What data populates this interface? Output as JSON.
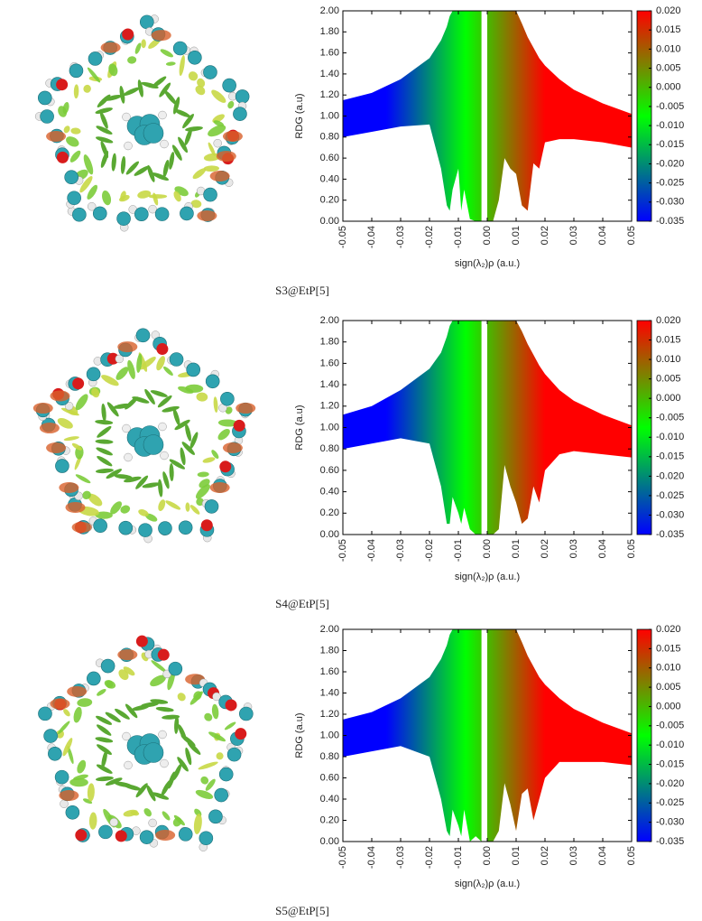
{
  "chart_data": [
    {
      "type": "band",
      "caption": "S3@EtP[5]",
      "xlabel": "sign(λ₂)ρ (a.u.)",
      "ylabel": "RDG (a.u)",
      "x": [
        -0.05,
        -0.04,
        -0.03,
        -0.02,
        -0.016,
        -0.014,
        -0.013,
        -0.012,
        -0.01,
        -0.009,
        -0.008,
        -0.006,
        -0.004,
        -0.002,
        -0.001,
        0.0,
        0.002,
        0.004,
        0.006,
        0.008,
        0.01,
        0.012,
        0.014,
        0.016,
        0.018,
        0.02,
        0.025,
        0.03,
        0.04,
        0.05
      ],
      "series": [
        {
          "values": [
            1.15,
            1.22,
            1.35,
            1.55,
            1.72,
            1.85,
            1.95,
            2.0,
            2.0,
            2.0,
            2.0,
            2.0,
            2.0,
            2.0,
            null,
            2.0,
            2.0,
            2.0,
            2.0,
            2.0,
            2.0,
            1.88,
            1.75,
            1.65,
            1.55,
            1.48,
            1.35,
            1.25,
            1.12,
            1.02
          ]
        },
        {
          "values": [
            0.8,
            0.85,
            0.9,
            0.92,
            0.5,
            0.15,
            0.1,
            0.3,
            0.5,
            0.1,
            0.3,
            0.02,
            0.0,
            0.0,
            null,
            0.0,
            0.0,
            0.2,
            0.6,
            0.5,
            0.45,
            0.15,
            0.1,
            0.55,
            0.5,
            0.75,
            0.78,
            0.78,
            0.75,
            0.7
          ]
        }
      ],
      "xlim": [
        -0.05,
        0.05
      ],
      "xticks": [
        {
          "value": -0.05,
          "label": "-0.05"
        },
        {
          "value": -0.04,
          "label": "-0.04"
        },
        {
          "value": -0.03,
          "label": "-0.03"
        },
        {
          "value": -0.02,
          "label": "-0.02"
        },
        {
          "value": -0.01,
          "label": "-0.01"
        },
        {
          "value": 0,
          "label": "0.00"
        },
        {
          "value": 0.01,
          "label": "0.01"
        },
        {
          "value": 0.02,
          "label": "0.02"
        },
        {
          "value": 0.03,
          "label": "0.03"
        },
        {
          "value": 0.04,
          "label": "0.04"
        },
        {
          "value": 0.05,
          "label": "0.05"
        }
      ],
      "ylim": [
        0,
        2
      ],
      "yticks": [
        {
          "value": 0,
          "label": "0.00"
        },
        {
          "value": 0.2,
          "label": "0.20"
        },
        {
          "value": 0.4,
          "label": "0.40"
        },
        {
          "value": 0.6,
          "label": "0.60"
        },
        {
          "value": 0.8,
          "label": "0.80"
        },
        {
          "value": 1,
          "label": "1.00"
        },
        {
          "value": 1.2,
          "label": "1.20"
        },
        {
          "value": 1.4,
          "label": "1.40"
        },
        {
          "value": 1.6,
          "label": "1.60"
        },
        {
          "value": 1.8,
          "label": "1.80"
        },
        {
          "value": 2,
          "label": "2.00"
        }
      ],
      "clim": [
        -0.035,
        0.02
      ],
      "colors": [
        "#0000ff",
        "#00ff00",
        "#ff0000"
      ],
      "cticks": [
        {
          "value": 0.02,
          "label": "0.020"
        },
        {
          "value": 0.015,
          "label": "0.015"
        },
        {
          "value": 0.01,
          "label": "0.010"
        },
        {
          "value": 0.005,
          "label": "0.005"
        },
        {
          "value": 0,
          "label": "0.000"
        },
        {
          "value": -0.005,
          "label": "-0.005"
        },
        {
          "value": -0.01,
          "label": "-0.010"
        },
        {
          "value": -0.015,
          "label": "-0.015"
        },
        {
          "value": -0.02,
          "label": "-0.020"
        },
        {
          "value": -0.025,
          "label": "-0.025"
        },
        {
          "value": -0.03,
          "label": "-0.030"
        },
        {
          "value": -0.035,
          "label": "-0.035"
        }
      ]
    },
    {
      "type": "band",
      "caption": "S4@EtP[5]",
      "xlabel": "sign(λ₂)ρ (a.u.)",
      "ylabel": "RDG (a.u)",
      "x": [
        -0.05,
        -0.04,
        -0.03,
        -0.02,
        -0.016,
        -0.014,
        -0.013,
        -0.012,
        -0.01,
        -0.009,
        -0.008,
        -0.006,
        -0.004,
        -0.002,
        -0.001,
        0.0,
        0.002,
        0.004,
        0.006,
        0.008,
        0.01,
        0.012,
        0.014,
        0.016,
        0.018,
        0.02,
        0.025,
        0.03,
        0.04,
        0.05
      ],
      "series": [
        {
          "values": [
            1.12,
            1.2,
            1.35,
            1.55,
            1.7,
            1.85,
            1.95,
            2.0,
            2.0,
            2.0,
            2.0,
            2.0,
            2.0,
            2.0,
            null,
            2.0,
            2.0,
            2.0,
            2.0,
            2.0,
            2.0,
            1.9,
            1.78,
            1.68,
            1.58,
            1.5,
            1.35,
            1.25,
            1.12,
            1.02
          ]
        },
        {
          "values": [
            0.8,
            0.85,
            0.9,
            0.85,
            0.45,
            0.1,
            0.1,
            0.35,
            0.2,
            0.1,
            0.25,
            0.05,
            0.0,
            0.0,
            null,
            0.0,
            0.0,
            0.05,
            0.65,
            0.45,
            0.3,
            0.1,
            0.15,
            0.45,
            0.3,
            0.6,
            0.75,
            0.78,
            0.75,
            0.72
          ]
        }
      ],
      "xlim": [
        -0.05,
        0.05
      ],
      "xticks": [
        {
          "value": -0.05,
          "label": "-0.05"
        },
        {
          "value": -0.04,
          "label": "-0.04"
        },
        {
          "value": -0.03,
          "label": "-0.03"
        },
        {
          "value": -0.02,
          "label": "-0.02"
        },
        {
          "value": -0.01,
          "label": "-0.01"
        },
        {
          "value": 0,
          "label": "0.00"
        },
        {
          "value": 0.01,
          "label": "0.01"
        },
        {
          "value": 0.02,
          "label": "0.02"
        },
        {
          "value": 0.03,
          "label": "0.03"
        },
        {
          "value": 0.04,
          "label": "0.04"
        },
        {
          "value": 0.05,
          "label": "0.05"
        }
      ],
      "ylim": [
        0,
        2
      ],
      "yticks": [
        {
          "value": 0,
          "label": "0.00"
        },
        {
          "value": 0.2,
          "label": "0.20"
        },
        {
          "value": 0.4,
          "label": "0.40"
        },
        {
          "value": 0.6,
          "label": "0.60"
        },
        {
          "value": 0.8,
          "label": "0.80"
        },
        {
          "value": 1,
          "label": "1.00"
        },
        {
          "value": 1.2,
          "label": "1.20"
        },
        {
          "value": 1.4,
          "label": "1.40"
        },
        {
          "value": 1.6,
          "label": "1.60"
        },
        {
          "value": 1.8,
          "label": "1.80"
        },
        {
          "value": 2,
          "label": "2.00"
        }
      ],
      "clim": [
        -0.035,
        0.02
      ],
      "colors": [
        "#0000ff",
        "#00ff00",
        "#ff0000"
      ],
      "cticks": [
        {
          "value": 0.02,
          "label": "0.020"
        },
        {
          "value": 0.015,
          "label": "0.015"
        },
        {
          "value": 0.01,
          "label": "0.010"
        },
        {
          "value": 0.005,
          "label": "0.005"
        },
        {
          "value": 0,
          "label": "0.000"
        },
        {
          "value": -0.005,
          "label": "-0.005"
        },
        {
          "value": -0.01,
          "label": "-0.010"
        },
        {
          "value": -0.015,
          "label": "-0.015"
        },
        {
          "value": -0.02,
          "label": "-0.020"
        },
        {
          "value": -0.025,
          "label": "-0.025"
        },
        {
          "value": -0.03,
          "label": "-0.030"
        },
        {
          "value": -0.035,
          "label": "-0.035"
        }
      ]
    },
    {
      "type": "band",
      "caption": "S5@EtP[5]",
      "xlabel": "sign(λ₂)ρ (a.u.)",
      "ylabel": "RDG (a.u)",
      "x": [
        -0.05,
        -0.04,
        -0.03,
        -0.02,
        -0.016,
        -0.014,
        -0.013,
        -0.012,
        -0.01,
        -0.009,
        -0.008,
        -0.006,
        -0.004,
        -0.002,
        -0.001,
        0.0,
        0.002,
        0.004,
        0.006,
        0.008,
        0.01,
        0.012,
        0.014,
        0.016,
        0.018,
        0.02,
        0.025,
        0.03,
        0.04,
        0.05
      ],
      "series": [
        {
          "values": [
            1.15,
            1.22,
            1.35,
            1.55,
            1.72,
            1.85,
            1.95,
            2.0,
            2.0,
            2.0,
            2.0,
            2.0,
            2.0,
            2.0,
            null,
            2.0,
            2.0,
            2.0,
            2.0,
            2.0,
            2.0,
            1.88,
            1.75,
            1.65,
            1.55,
            1.48,
            1.35,
            1.25,
            1.12,
            1.02
          ]
        },
        {
          "values": [
            0.8,
            0.85,
            0.9,
            0.8,
            0.4,
            0.1,
            0.05,
            0.3,
            0.15,
            0.05,
            0.3,
            0.0,
            0.05,
            0.0,
            null,
            0.0,
            0.0,
            0.1,
            0.55,
            0.35,
            0.1,
            0.45,
            0.5,
            0.2,
            0.4,
            0.6,
            0.75,
            0.75,
            0.75,
            0.72
          ]
        }
      ],
      "xlim": [
        -0.05,
        0.05
      ],
      "xticks": [
        {
          "value": -0.05,
          "label": "-0.05"
        },
        {
          "value": -0.04,
          "label": "-0.04"
        },
        {
          "value": -0.03,
          "label": "-0.03"
        },
        {
          "value": -0.02,
          "label": "-0.02"
        },
        {
          "value": -0.01,
          "label": "-0.01"
        },
        {
          "value": 0,
          "label": "0.00"
        },
        {
          "value": 0.01,
          "label": "0.01"
        },
        {
          "value": 0.02,
          "label": "0.02"
        },
        {
          "value": 0.03,
          "label": "0.03"
        },
        {
          "value": 0.04,
          "label": "0.04"
        },
        {
          "value": 0.05,
          "label": "0.05"
        }
      ],
      "ylim": [
        0,
        2
      ],
      "yticks": [
        {
          "value": 0,
          "label": "0.00"
        },
        {
          "value": 0.2,
          "label": "0.20"
        },
        {
          "value": 0.4,
          "label": "0.40"
        },
        {
          "value": 0.6,
          "label": "0.60"
        },
        {
          "value": 0.8,
          "label": "0.80"
        },
        {
          "value": 1,
          "label": "1.00"
        },
        {
          "value": 1.2,
          "label": "1.20"
        },
        {
          "value": 1.4,
          "label": "1.40"
        },
        {
          "value": 1.6,
          "label": "1.60"
        },
        {
          "value": 1.8,
          "label": "1.80"
        },
        {
          "value": 2,
          "label": "2.00"
        }
      ],
      "clim": [
        -0.035,
        0.02
      ],
      "colors": [
        "#0000ff",
        "#00ff00",
        "#ff0000"
      ],
      "cticks": [
        {
          "value": 0.02,
          "label": "0.020"
        },
        {
          "value": 0.015,
          "label": "0.015"
        },
        {
          "value": 0.01,
          "label": "0.010"
        },
        {
          "value": 0.005,
          "label": "0.005"
        },
        {
          "value": 0,
          "label": "0.000"
        },
        {
          "value": -0.005,
          "label": "-0.005"
        },
        {
          "value": -0.01,
          "label": "-0.010"
        },
        {
          "value": -0.015,
          "label": "-0.015"
        },
        {
          "value": -0.02,
          "label": "-0.020"
        },
        {
          "value": -0.025,
          "label": "-0.025"
        },
        {
          "value": -0.03,
          "label": "-0.030"
        },
        {
          "value": -0.035,
          "label": "-0.035"
        }
      ]
    }
  ]
}
